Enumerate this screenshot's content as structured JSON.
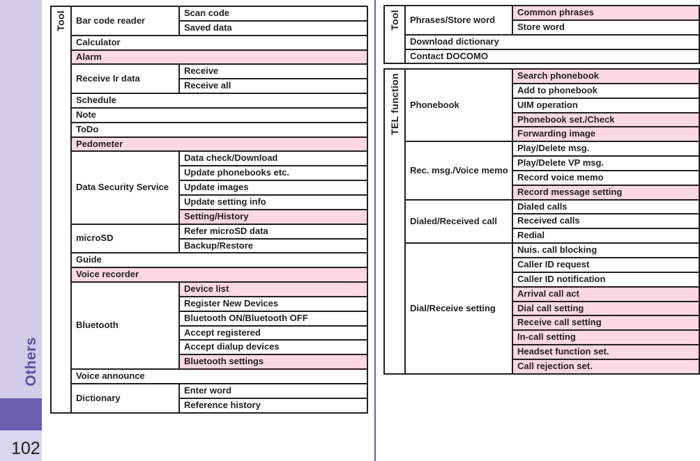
{
  "colors": {
    "highlight_pink": "#fbd8e2",
    "sidebar_lavender": "#d2cce8",
    "sidebar_lavender_light": "#dad5ee",
    "sidebar_accent_purple": "#6a5fae",
    "section_label_purple": "#5b50a4",
    "divider_purple": "#6660ab",
    "table_ink": "#221f20"
  },
  "sidebar": {
    "section_label": "Others",
    "page_number": "102"
  },
  "tables": [
    {
      "id": "tool-menu-left",
      "axis_label": "Tool",
      "groups": [
        {
          "name": "Bar code reader",
          "items": [
            {
              "label": "Scan code",
              "highlight": false
            },
            {
              "label": "Saved data",
              "highlight": false
            }
          ]
        },
        {
          "name": null,
          "items": [
            {
              "label": "Calculator",
              "highlight": false
            }
          ]
        },
        {
          "name": null,
          "items": [
            {
              "label": "Alarm",
              "highlight": true
            }
          ]
        },
        {
          "name": "Receive Ir data",
          "items": [
            {
              "label": "Receive",
              "highlight": false
            },
            {
              "label": "Receive all",
              "highlight": false
            }
          ]
        },
        {
          "name": null,
          "items": [
            {
              "label": "Schedule",
              "highlight": false
            }
          ]
        },
        {
          "name": null,
          "items": [
            {
              "label": "Note",
              "highlight": false
            }
          ]
        },
        {
          "name": null,
          "items": [
            {
              "label": "ToDo",
              "highlight": false
            }
          ]
        },
        {
          "name": null,
          "items": [
            {
              "label": "Pedometer",
              "highlight": true
            }
          ]
        },
        {
          "name": "Data Security Service",
          "items": [
            {
              "label": "Data check/Download",
              "highlight": false
            },
            {
              "label": "Update phonebooks etc.",
              "highlight": false
            },
            {
              "label": "Update images",
              "highlight": false
            },
            {
              "label": "Update setting info",
              "highlight": false
            },
            {
              "label": "Setting/History",
              "highlight": true
            }
          ]
        },
        {
          "name": "microSD",
          "items": [
            {
              "label": "Refer microSD data",
              "highlight": false
            },
            {
              "label": "Backup/Restore",
              "highlight": false
            }
          ]
        },
        {
          "name": null,
          "items": [
            {
              "label": "Guide",
              "highlight": false
            }
          ]
        },
        {
          "name": null,
          "items": [
            {
              "label": "Voice recorder",
              "highlight": true
            }
          ]
        },
        {
          "name": "Bluetooth",
          "items": [
            {
              "label": "Device list",
              "highlight": true
            },
            {
              "label": "Register New Devices",
              "highlight": false
            },
            {
              "label": "Bluetooth ON/Bluetooth OFF",
              "highlight": false
            },
            {
              "label": "Accept registered",
              "highlight": false
            },
            {
              "label": "Accept dialup devices",
              "highlight": false
            },
            {
              "label": "Bluetooth settings",
              "highlight": true
            }
          ]
        },
        {
          "name": null,
          "items": [
            {
              "label": "Voice announce",
              "highlight": false
            }
          ]
        },
        {
          "name": "Dictionary",
          "items": [
            {
              "label": "Enter word",
              "highlight": false
            },
            {
              "label": "Reference history",
              "highlight": false
            }
          ]
        }
      ]
    },
    {
      "id": "tool-menu-right",
      "axis_label": "Tool",
      "groups": [
        {
          "name": "Phrases/Store word",
          "items": [
            {
              "label": "Common phrases",
              "highlight": true
            },
            {
              "label": "Store word",
              "highlight": false
            }
          ]
        },
        {
          "name": null,
          "items": [
            {
              "label": "Download dictionary",
              "highlight": false
            }
          ]
        },
        {
          "name": null,
          "items": [
            {
              "label": "Contact DOCOMO",
              "highlight": false
            }
          ]
        }
      ]
    },
    {
      "id": "tel-function-menu",
      "axis_label": "TEL function",
      "groups": [
        {
          "name": "Phonebook",
          "items": [
            {
              "label": "Search phonebook",
              "highlight": true
            },
            {
              "label": "Add to phonebook",
              "highlight": false
            },
            {
              "label": "UIM operation",
              "highlight": false
            },
            {
              "label": "Phonebook set./Check",
              "highlight": true
            },
            {
              "label": "Forwarding image",
              "highlight": true
            }
          ]
        },
        {
          "name": "Rec. msg./Voice memo",
          "items": [
            {
              "label": "Play/Delete msg.",
              "highlight": false
            },
            {
              "label": "Play/Delete VP msg.",
              "highlight": false
            },
            {
              "label": "Record voice memo",
              "highlight": false
            },
            {
              "label": "Record message setting",
              "highlight": true
            }
          ]
        },
        {
          "name": "Dialed/Received call",
          "items": [
            {
              "label": "Dialed calls",
              "highlight": false
            },
            {
              "label": "Received calls",
              "highlight": false
            },
            {
              "label": "Redial",
              "highlight": false
            }
          ]
        },
        {
          "name": "Dial/Receive setting",
          "items": [
            {
              "label": "Nuis. call blocking",
              "highlight": false
            },
            {
              "label": "Caller ID request",
              "highlight": false
            },
            {
              "label": "Caller ID notification",
              "highlight": false
            },
            {
              "label": "Arrival call act",
              "highlight": true
            },
            {
              "label": "Dial call setting",
              "highlight": true
            },
            {
              "label": "Receive call setting",
              "highlight": true
            },
            {
              "label": "In-call setting",
              "highlight": true
            },
            {
              "label": "Headset function set.",
              "highlight": true
            },
            {
              "label": "Call rejection set.",
              "highlight": true
            }
          ]
        }
      ]
    }
  ]
}
